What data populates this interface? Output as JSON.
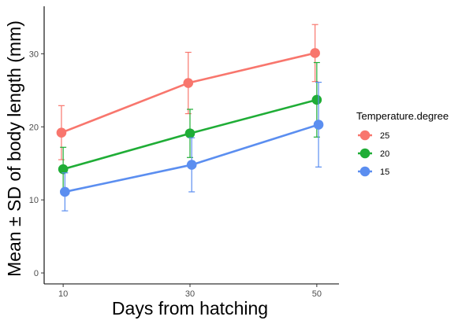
{
  "chart_data": {
    "type": "line",
    "x": [
      10,
      30,
      50
    ],
    "xlabel": "Days from hatching",
    "ylabel": "Mean ± SD of body length (mm)",
    "xlim": [
      7,
      53.5
    ],
    "ylim": [
      -1.5,
      36.5
    ],
    "xticks": [
      10,
      30,
      50
    ],
    "yticks": [
      0,
      10,
      20,
      30
    ],
    "grid": false,
    "legend": {
      "title": "Temperature.degree",
      "position": "right"
    },
    "series": [
      {
        "name": "25",
        "color": "#f8766d",
        "dodge": -1,
        "values": [
          19.2,
          26.0,
          30.1
        ],
        "sd": [
          3.7,
          4.2,
          3.9
        ]
      },
      {
        "name": "20",
        "color": "#1fad36",
        "dodge": 0,
        "values": [
          14.2,
          19.1,
          23.7
        ],
        "sd": [
          3.0,
          3.3,
          5.1
        ]
      },
      {
        "name": "15",
        "color": "#5b8ef0",
        "dodge": 1,
        "values": [
          11.1,
          14.8,
          20.3
        ],
        "sd": [
          2.6,
          3.7,
          5.8
        ]
      }
    ]
  }
}
